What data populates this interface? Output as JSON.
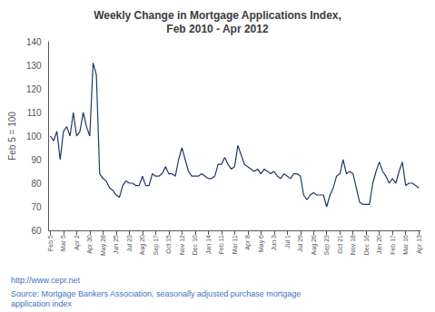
{
  "chart_data": {
    "type": "line",
    "title": "Weekly Change in Mortgage Applications Index,\nFeb 2010 - Apr 2012",
    "ylabel": "Feb 5 = 100",
    "annotations": [
      "http://www.cepr.net",
      "Source: Mortgage Bankers Association, seasonally adjusted purchase mortgage\napplication index"
    ],
    "color": "#1f3864",
    "ylim": [
      60,
      140
    ],
    "yticks": [
      60,
      70,
      80,
      90,
      100,
      110,
      120,
      130,
      140
    ],
    "grid": false,
    "categories": [
      "Feb 5",
      null,
      null,
      null,
      "Mar 5",
      null,
      null,
      null,
      "Apr 2",
      null,
      null,
      null,
      "Apr 30",
      null,
      null,
      null,
      "May 28",
      null,
      null,
      null,
      "Jun 25",
      null,
      null,
      null,
      "Jul 23",
      null,
      null,
      null,
      "Aug 20",
      null,
      null,
      null,
      "Sep 17",
      null,
      null,
      null,
      "Oct 15",
      null,
      null,
      null,
      "Nov 12",
      null,
      null,
      null,
      "Dec 10",
      null,
      null,
      null,
      "Jan 14",
      null,
      null,
      null,
      "Feb 11",
      null,
      null,
      null,
      "Mar 11",
      null,
      null,
      null,
      "Apr 8",
      null,
      null,
      null,
      "May 6",
      null,
      null,
      null,
      "Jun 3",
      null,
      null,
      null,
      "Jul 1",
      null,
      null,
      null,
      "Jul 29",
      null,
      null,
      null,
      "Aug 26",
      null,
      null,
      null,
      "Sep 23",
      null,
      null,
      null,
      "Oct 21",
      null,
      null,
      null,
      "Nov 18",
      null,
      null,
      null,
      "Dec 16",
      null,
      null,
      null,
      "Jan 20",
      null,
      null,
      null,
      "Feb 17",
      null,
      null,
      null,
      "Mar 16",
      null,
      null,
      null,
      "Apr 13"
    ],
    "values": [
      100,
      98,
      102,
      90,
      102,
      104,
      100,
      110,
      100,
      102,
      110,
      104,
      100,
      131,
      126,
      84,
      82,
      81,
      78,
      77,
      75,
      74,
      79,
      81,
      80,
      80,
      79,
      79,
      83,
      79,
      79,
      84,
      83,
      83,
      84,
      87,
      84,
      84,
      83,
      90,
      95,
      90,
      85,
      83,
      83,
      83,
      84,
      83,
      82,
      82,
      83,
      88,
      88,
      91,
      88,
      86,
      87,
      96,
      92,
      88,
      87,
      86,
      85,
      86,
      84,
      86,
      85,
      84,
      85,
      83,
      82,
      84,
      83,
      82,
      84,
      84,
      83,
      75,
      73,
      75,
      76,
      75,
      75,
      75,
      70,
      75,
      78,
      83,
      84,
      90,
      84,
      85,
      84,
      78,
      72,
      71,
      71,
      71,
      80,
      85,
      89,
      85,
      83,
      80,
      82,
      80,
      85,
      89,
      79,
      80,
      80,
      79,
      78
    ]
  }
}
